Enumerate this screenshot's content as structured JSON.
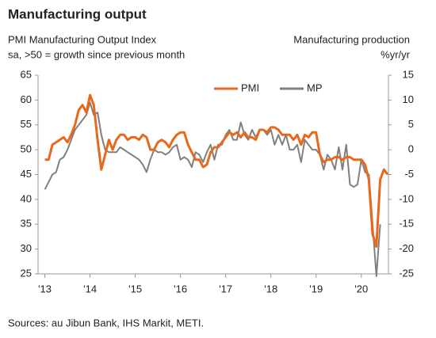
{
  "chart_data": {
    "type": "line",
    "title": "Manufacturing output",
    "y_label": [
      "PMI Manufacturing Output Index",
      "sa, >50 = growth since previous month"
    ],
    "y2_label": [
      "Manufacturing production",
      "%yr/yr"
    ],
    "source": "Sources: au Jibun Bank, IHS Markit, METI.",
    "x": [
      2013,
      2013.083,
      2013.167,
      2013.25,
      2013.333,
      2013.417,
      2013.5,
      2013.583,
      2013.667,
      2013.75,
      2013.833,
      2013.917,
      2014,
      2014.083,
      2014.167,
      2014.25,
      2014.333,
      2014.417,
      2014.5,
      2014.583,
      2014.667,
      2014.75,
      2014.833,
      2014.917,
      2015,
      2015.083,
      2015.167,
      2015.25,
      2015.333,
      2015.417,
      2015.5,
      2015.583,
      2015.667,
      2015.75,
      2015.833,
      2015.917,
      2016,
      2016.083,
      2016.167,
      2016.25,
      2016.333,
      2016.417,
      2016.5,
      2016.583,
      2016.667,
      2016.75,
      2016.833,
      2016.917,
      2017,
      2017.083,
      2017.167,
      2017.25,
      2017.333,
      2017.417,
      2017.5,
      2017.583,
      2017.667,
      2017.75,
      2017.833,
      2017.917,
      2018,
      2018.083,
      2018.167,
      2018.25,
      2018.333,
      2018.417,
      2018.5,
      2018.583,
      2018.667,
      2018.75,
      2018.833,
      2018.917,
      2019,
      2019.083,
      2019.167,
      2019.25,
      2019.333,
      2019.417,
      2019.5,
      2019.583,
      2019.667,
      2019.75,
      2019.833,
      2019.917,
      2020,
      2020.083,
      2020.167,
      2020.25,
      2020.333,
      2020.417,
      2020.5,
      2020.583
    ],
    "series": [
      {
        "name": "PMI",
        "color": "#e8691d",
        "axis": "y",
        "values": [
          48,
          48,
          51,
          51.5,
          52,
          52.5,
          51.5,
          53,
          55,
          58,
          59,
          57.5,
          61,
          59,
          52,
          46,
          49,
          52,
          50,
          52,
          53,
          53,
          52,
          52.5,
          52.5,
          52,
          53,
          52.5,
          50,
          50,
          51.5,
          52,
          51.5,
          50.5,
          52,
          53,
          53.5,
          53.5,
          51,
          49.5,
          48,
          48,
          46.5,
          47,
          49.5,
          50.5,
          50.5,
          51.5,
          52.5,
          53.5,
          53,
          53.5,
          52.5,
          53.5,
          52.5,
          52.5,
          52,
          54,
          54,
          53.5,
          54.5,
          54.5,
          54,
          53,
          53,
          53,
          52,
          53,
          51,
          53,
          52.5,
          53.5,
          53.5,
          49,
          47.5,
          48,
          48,
          48.5,
          48.5,
          48,
          48.5,
          48.5,
          48,
          48,
          48,
          47,
          44,
          33,
          30.5,
          44,
          46,
          45
        ]
      },
      {
        "name": "MP",
        "color": "#808080",
        "axis": "y2",
        "values": [
          -8,
          -6.5,
          -5,
          -4.5,
          -2,
          -1.5,
          0,
          2,
          4,
          5,
          6,
          7,
          9.5,
          7,
          7.5,
          3,
          0,
          -0.5,
          -0.5,
          -0.5,
          0.5,
          0,
          -0.5,
          -1,
          -1.5,
          -2,
          -3,
          -4.5,
          -2,
          0,
          -0.5,
          -0.5,
          -1,
          -0.5,
          0.5,
          1,
          -2,
          -1.5,
          -2,
          -3.5,
          -0.5,
          -1,
          -2.5,
          -0.5,
          1,
          -2,
          1,
          1,
          3,
          4,
          2,
          2,
          5.5,
          3,
          2,
          4,
          2.5,
          4,
          4,
          3,
          4,
          1,
          3,
          1,
          3,
          0,
          0,
          1,
          -2.5,
          2,
          1,
          0,
          0,
          -1,
          -4,
          -1,
          -2,
          -4,
          0.5,
          -4,
          1,
          -7,
          -7.5,
          -7,
          -2,
          -4.5,
          -5,
          -15,
          -25.5,
          -15,
          null,
          null
        ]
      }
    ],
    "xlim": [
      2012.85,
      2020.6
    ],
    "xticks": [
      {
        "value": 2013,
        "label": "'13"
      },
      {
        "value": 2014,
        "label": "'14"
      },
      {
        "value": 2015,
        "label": "'15"
      },
      {
        "value": 2016,
        "label": "'16"
      },
      {
        "value": 2017,
        "label": "'17"
      },
      {
        "value": 2018,
        "label": "'18"
      },
      {
        "value": 2019,
        "label": "'19"
      },
      {
        "value": 2020,
        "label": "'20"
      }
    ],
    "ylim": [
      25,
      65
    ],
    "yticks": [
      25,
      30,
      35,
      40,
      45,
      50,
      55,
      60,
      65
    ],
    "y2lim": [
      -25,
      15
    ],
    "y2ticks": [
      -25,
      -20,
      -15,
      -10,
      -5,
      0,
      5,
      10,
      15
    ],
    "grid": false
  }
}
